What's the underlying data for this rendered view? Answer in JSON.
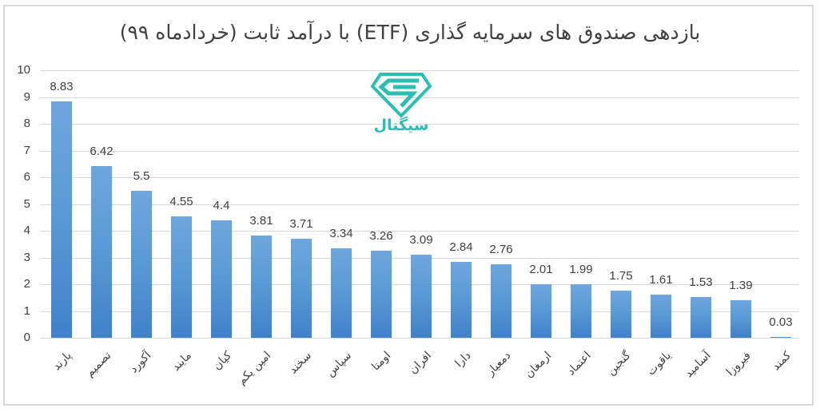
{
  "chart_data": {
    "type": "bar",
    "title": "بازدهی صندوق های سرمایه گذاری (ETF) با درآمد ثابت (خردادماه ۹۹)",
    "xlabel": "",
    "ylabel": "",
    "ylim": [
      0,
      10
    ],
    "yticks": [
      0,
      1,
      2,
      3,
      4,
      5,
      6,
      7,
      8,
      9,
      10
    ],
    "grid": true,
    "legend": "none",
    "categories": [
      "پارند",
      "تصمیم",
      "آکورد",
      "مایند",
      "کیان",
      "امین یکم",
      "سخند",
      "سپاس",
      "اومتا",
      "افران",
      "دارا",
      "دمعیار",
      "ارمغان",
      "اعتماد",
      "گنجین",
      "یاقوت",
      "آسامید",
      "فیروزا",
      "کمند"
    ],
    "values": [
      8.83,
      6.42,
      5.5,
      4.55,
      4.4,
      3.81,
      3.71,
      3.34,
      3.26,
      3.09,
      2.84,
      2.76,
      2.01,
      1.99,
      1.75,
      1.61,
      1.53,
      1.39,
      0.03
    ],
    "data_labels": [
      "8.83",
      "6.42",
      "5.5",
      "4.55",
      "4.4",
      "3.81",
      "3.71",
      "3.34",
      "3.26",
      "3.09",
      "2.84",
      "2.76",
      "2.01",
      "1.99",
      "1.75",
      "1.61",
      "1.53",
      "1.39",
      "0.03"
    ],
    "bar_color": "#5b9bd5"
  },
  "watermark": {
    "text": "سیگنال",
    "icon": "diamond-s-logo-icon",
    "color": "#2bbfb3"
  }
}
